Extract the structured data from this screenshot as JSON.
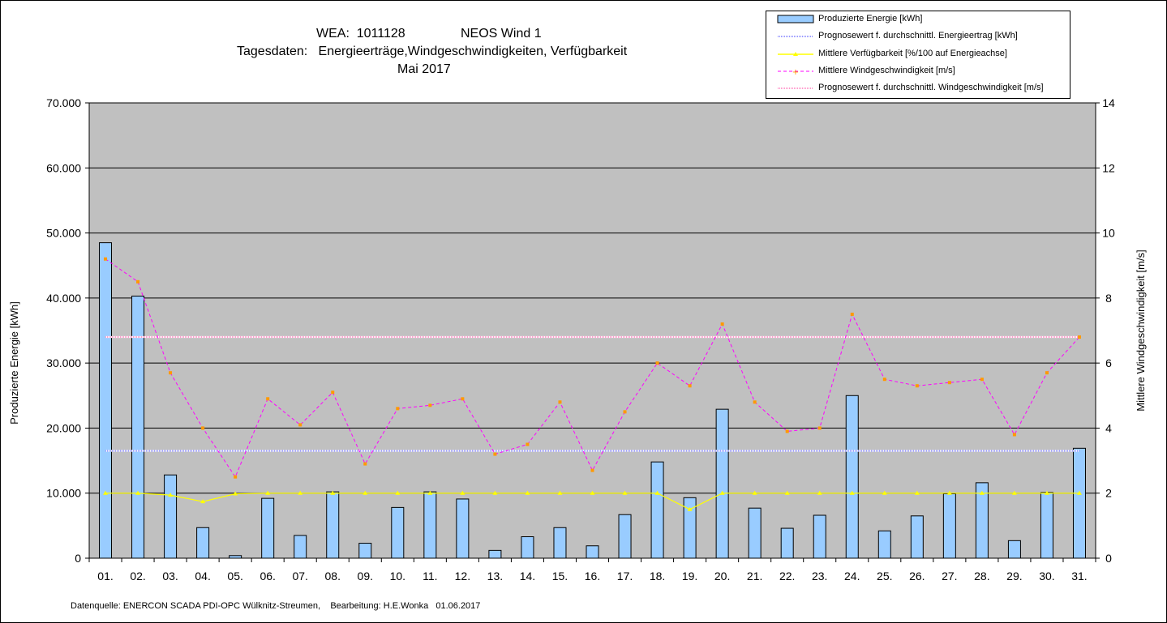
{
  "title_lines": {
    "line1_a": "WEA:  1011128",
    "line1_b": "NEOS Wind 1",
    "line2": "Tagesdaten:   Energieerträge,Windgeschwindigkeiten, Verfügbarkeit",
    "line3": "Mai 2017"
  },
  "footer": "Datenquelle: ENERCON SCADA PDI-OPC Wülknitz-Streumen,    Bearbeitung: H.E.Wonka   01.06.2017",
  "colors": {
    "plot_bg": "#C0C0C0",
    "bar_fill": "#99CCFF",
    "energy_forecast": "#9999FF",
    "availability": "#FFFF00",
    "wind": "#FF00FF",
    "wind_marker": "#FF9900",
    "wind_forecast": "#FF99CC"
  },
  "chart_data": {
    "type": "bar",
    "xlabel": "",
    "ylabel": "Produzierte Energie [kWh]",
    "ylabel_right": "Mittlere Windgeschwindigkeit [m/s]",
    "ylim": [
      0,
      70000
    ],
    "ylim_right": [
      0,
      14
    ],
    "grid": true,
    "legend_position": "top-right",
    "y_ticks": [
      "0",
      "10.000",
      "20.000",
      "30.000",
      "40.000",
      "50.000",
      "60.000",
      "70.000"
    ],
    "y_ticks_right": [
      "0",
      "2",
      "4",
      "6",
      "8",
      "10",
      "12",
      "14"
    ],
    "categories": [
      "01.",
      "02.",
      "03.",
      "04.",
      "05.",
      "06.",
      "07.",
      "08.",
      "09.",
      "10.",
      "11.",
      "12.",
      "13.",
      "14.",
      "15.",
      "16.",
      "17.",
      "18.",
      "19.",
      "20.",
      "21.",
      "22.",
      "23.",
      "24.",
      "25.",
      "26.",
      "27.",
      "28.",
      "29.",
      "30.",
      "31."
    ],
    "series": [
      {
        "name": "Produzierte Energie [kWh]",
        "type": "bar",
        "axis": "left",
        "values": [
          48500,
          40300,
          12800,
          4700,
          400,
          9200,
          3500,
          10200,
          2300,
          7800,
          10200,
          9100,
          1200,
          3300,
          4700,
          1900,
          6700,
          14800,
          9300,
          22900,
          7700,
          4600,
          6600,
          25000,
          4200,
          6500,
          9900,
          11600,
          2700,
          10100,
          16900
        ]
      },
      {
        "name": "Prognosewert f. durchschnittl. Energieertrag  [kWh]",
        "type": "line",
        "axis": "left",
        "values": [
          16500,
          16500,
          16500,
          16500,
          16500,
          16500,
          16500,
          16500,
          16500,
          16500,
          16500,
          16500,
          16500,
          16500,
          16500,
          16500,
          16500,
          16500,
          16500,
          16500,
          16500,
          16500,
          16500,
          16500,
          16500,
          16500,
          16500,
          16500,
          16500,
          16500,
          16500
        ]
      },
      {
        "name": "Mittlere Verfügbarkeit [%/100 auf Energieachse]",
        "type": "line",
        "axis": "left",
        "values": [
          10000,
          10000,
          9700,
          8700,
          9900,
          10000,
          10000,
          10000,
          10000,
          10000,
          10000,
          10000,
          10000,
          10000,
          10000,
          10000,
          10000,
          10000,
          7500,
          10000,
          10000,
          10000,
          10000,
          10000,
          10000,
          10000,
          10000,
          10000,
          10000,
          10000,
          10000
        ]
      },
      {
        "name": "Mittlere Windgeschwindigkeit [m/s]",
        "type": "line",
        "axis": "right",
        "values": [
          9.2,
          8.5,
          5.7,
          4.0,
          2.5,
          4.9,
          4.1,
          5.1,
          2.9,
          4.6,
          4.7,
          4.9,
          3.2,
          3.5,
          4.8,
          2.7,
          4.5,
          6.0,
          5.3,
          7.2,
          4.8,
          3.9,
          4.0,
          7.5,
          5.5,
          5.3,
          5.4,
          5.5,
          3.8,
          5.7,
          6.8
        ]
      },
      {
        "name": "Prognosewert f. durchschnittl. Windgeschwindigkeit [m/s]",
        "type": "line",
        "axis": "right",
        "values": [
          6.8,
          6.8,
          6.8,
          6.8,
          6.8,
          6.8,
          6.8,
          6.8,
          6.8,
          6.8,
          6.8,
          6.8,
          6.8,
          6.8,
          6.8,
          6.8,
          6.8,
          6.8,
          6.8,
          6.8,
          6.8,
          6.8,
          6.8,
          6.8,
          6.8,
          6.8,
          6.8,
          6.8,
          6.8,
          6.8,
          6.8
        ]
      }
    ]
  }
}
